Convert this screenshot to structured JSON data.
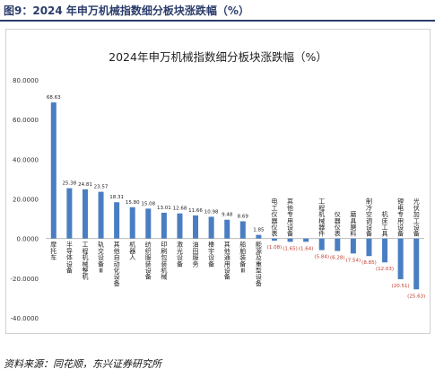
{
  "figure": {
    "caption": "图9：2024 年申万机械指数细分板块涨跌幅（%）",
    "source": "资料来源：同花顺，东兴证券研究所"
  },
  "chart_data": {
    "type": "bar",
    "title": "2024年申万机械指数细分板块涨跌幅（%）",
    "xlabel": "",
    "ylabel": "",
    "ylim": [
      -40,
      80
    ],
    "yticks": [
      "80.0000",
      "60.0000",
      "40.0000",
      "20.0000",
      "0.0000",
      "-20.0000",
      "-40.0000"
    ],
    "ytick_values": [
      80,
      60,
      40,
      20,
      0,
      -20,
      -40
    ],
    "grid": false,
    "bar_color": "#4a7ec2",
    "categories": [
      "摩托车",
      "半导体设备",
      "工程机械整机",
      "轨交设备Ⅲ",
      "其他自动化设备",
      "机器人",
      "纺织服装设备",
      "印刷包装机械",
      "激光设备",
      "油田服务",
      "楼宇设备",
      "其他通用设备",
      "船舶装备Ⅲ",
      "能源及重型设备",
      "电工仪器仪表",
      "其他专用设备",
      "",
      "工程机械器件",
      "仪器仪表",
      "磨具磨料",
      "制冷空调设备",
      "机床工具",
      "锂电专用设备",
      "光伏加工设备"
    ],
    "values": [
      68.63,
      25.38,
      24.81,
      23.57,
      18.31,
      15.8,
      15.08,
      13.01,
      12.68,
      11.66,
      10.98,
      9.48,
      8.69,
      1.85,
      -1.08,
      -1.65,
      -1.64,
      -5.84,
      -6.28,
      -7.54,
      -8.85,
      -12.03,
      -20.51,
      -25.63
    ],
    "data_labels": [
      "68.63",
      "25.38",
      "24.81",
      "23.57",
      "18.31",
      "15.80",
      "15.08",
      "13.01",
      "12.68",
      "11.66",
      "10.98",
      "9.48",
      "8.69",
      "1.85",
      "(1.08)",
      "(1.65)",
      "(1.64)",
      "(5.84)",
      "(6.28)",
      "(7.54)",
      "(8.85)",
      "(12.03)",
      "(20.51)",
      "(25.63)"
    ]
  }
}
